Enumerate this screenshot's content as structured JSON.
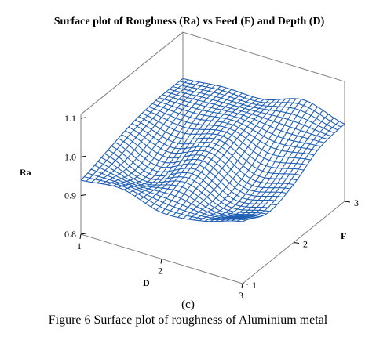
{
  "chart_data": {
    "type": "surface",
    "title": "Surface plot of Roughness (Ra) vs Feed (F) and Depth (D)",
    "xlabel": "D",
    "ylabel": "F",
    "zlabel": "Ra",
    "x_ticks": [
      "1",
      "2",
      "3"
    ],
    "y_ticks": [
      "1",
      "2",
      "3"
    ],
    "z_ticks": [
      "0.8",
      "0.9",
      "1.0",
      "1.1"
    ],
    "xlim": [
      1,
      3
    ],
    "ylim": [
      1,
      3
    ],
    "zlim": [
      0.8,
      1.1
    ],
    "grid": {
      "D": [
        1,
        1.5,
        2,
        2.5,
        3
      ],
      "F": [
        1,
        1.5,
        2,
        2.5,
        3
      ]
    },
    "Ra": [
      [
        0.94,
        0.96,
        0.98,
        0.99,
        0.99
      ],
      [
        0.95,
        0.92,
        0.95,
        0.99,
        1.0
      ],
      [
        0.92,
        0.95,
        0.98,
        1.0,
        1.0
      ],
      [
        0.93,
        0.91,
        0.93,
        0.98,
        1.03
      ],
      [
        0.96,
        0.93,
        0.95,
        0.99,
        1.0
      ]
    ],
    "mesh_color": "#1f5fb4",
    "box_color": "#808080"
  },
  "caption": {
    "sub": "(c)",
    "main": "Figure 6 Surface plot of roughness of Aluminium metal"
  }
}
